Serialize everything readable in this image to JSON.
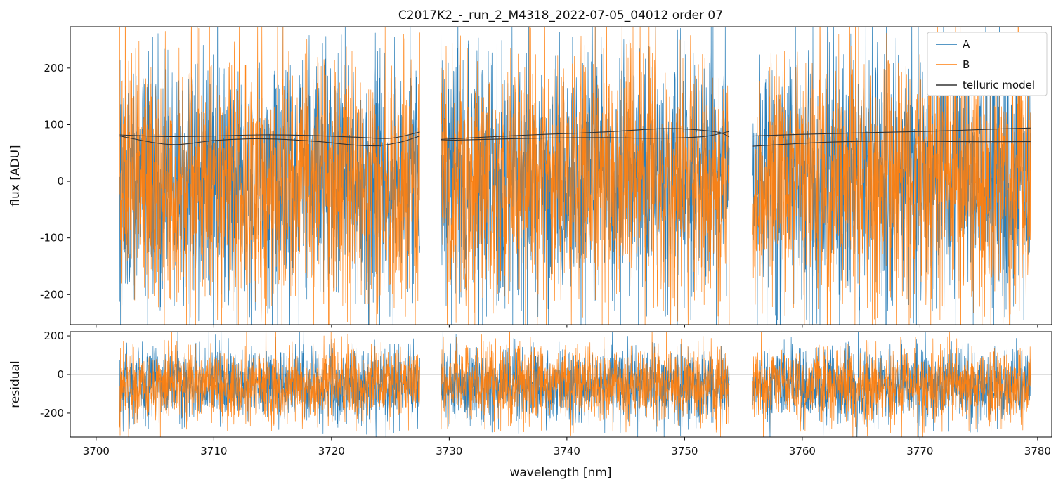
{
  "figure": {
    "title": "C2017K2_-_run_2_M4318_2022-07-05_04012  order 07"
  },
  "chart_data": [
    {
      "type": "line",
      "title": "C2017K2_-_run_2_M4318_2022-07-05_04012  order 07",
      "ylabel": "flux [ADU]",
      "xlim": [
        3697.8,
        3781.2
      ],
      "ylim": [
        -253,
        273
      ],
      "yticks": [
        -200,
        -100,
        0,
        100,
        200
      ],
      "segments_nm": [
        [
          3702,
          3727.5
        ],
        [
          3729.3,
          3753.8
        ],
        [
          3755.8,
          3779.4
        ]
      ],
      "grid": false,
      "legend": {
        "loc": "upper right",
        "entries": [
          "A",
          "B",
          "telluric model"
        ]
      },
      "series": [
        {
          "name": "A",
          "color": "#1f77b4",
          "noise_mean": 5,
          "noise_sigma": 113
        },
        {
          "name": "B",
          "color": "#ff7f0e",
          "noise_mean": 5,
          "noise_sigma": 115
        },
        {
          "name": "telluric model",
          "color": "#333333",
          "curves": [
            [
              [
                3702,
                82
              ],
              [
                3706,
                79
              ],
              [
                3710,
                80
              ],
              [
                3714,
                82
              ],
              [
                3718,
                81
              ],
              [
                3722,
                78
              ],
              [
                3725,
                76
              ],
              [
                3727.5,
                87
              ]
            ],
            [
              [
                3702,
                80
              ],
              [
                3705,
                68
              ],
              [
                3707,
                65
              ],
              [
                3710,
                72
              ],
              [
                3713,
                75
              ],
              [
                3716,
                74
              ],
              [
                3719,
                70
              ],
              [
                3722,
                64
              ],
              [
                3724,
                63
              ],
              [
                3726,
                70
              ],
              [
                3727.5,
                80
              ]
            ],
            [
              [
                3729.3,
                74
              ],
              [
                3733,
                78
              ],
              [
                3737,
                82
              ],
              [
                3741,
                85
              ],
              [
                3744,
                88
              ],
              [
                3747,
                92
              ],
              [
                3749,
                93
              ],
              [
                3751,
                91
              ],
              [
                3753,
                86
              ],
              [
                3753.8,
                78
              ]
            ],
            [
              [
                3729.3,
                72
              ],
              [
                3733,
                74
              ],
              [
                3737,
                76
              ],
              [
                3741,
                77
              ],
              [
                3744,
                77
              ],
              [
                3747,
                76
              ],
              [
                3750,
                77
              ],
              [
                3752,
                80
              ],
              [
                3753.8,
                88
              ]
            ],
            [
              [
                3755.8,
                80
              ],
              [
                3760,
                83
              ],
              [
                3764,
                85
              ],
              [
                3768,
                87
              ],
              [
                3772,
                89
              ],
              [
                3776,
                92
              ],
              [
                3779.4,
                94
              ]
            ],
            [
              [
                3755.8,
                62
              ],
              [
                3759,
                66
              ],
              [
                3762,
                69
              ],
              [
                3766,
                71
              ],
              [
                3770,
                71
              ],
              [
                3774,
                70
              ],
              [
                3779.4,
                70
              ]
            ]
          ]
        }
      ]
    },
    {
      "type": "line",
      "ylabel": "residual",
      "xlabel": "wavelength [nm]",
      "xlim": [
        3697.8,
        3781.2
      ],
      "ylim": [
        -324,
        222
      ],
      "yticks": [
        -200,
        0,
        200
      ],
      "xticks": [
        3700,
        3710,
        3720,
        3730,
        3740,
        3750,
        3760,
        3770,
        3780
      ],
      "segments_nm": [
        [
          3702,
          3727.5
        ],
        [
          3729.3,
          3753.8
        ],
        [
          3755.8,
          3779.4
        ]
      ],
      "zero_line": true,
      "grid": false,
      "series": [
        {
          "name": "A",
          "color": "#1f77b4",
          "noise_mean": -52,
          "noise_sigma": 95
        },
        {
          "name": "B",
          "color": "#ff7f0e",
          "noise_mean": -52,
          "noise_sigma": 97
        }
      ]
    }
  ]
}
